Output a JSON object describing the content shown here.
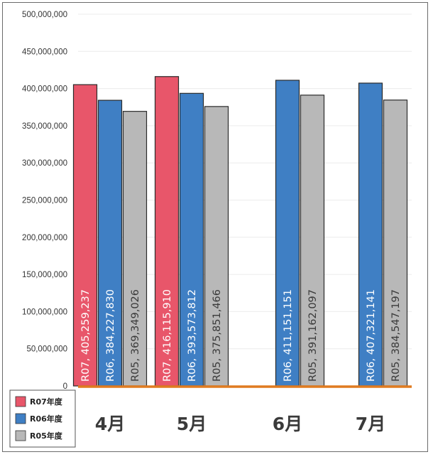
{
  "chart_data": {
    "type": "bar",
    "categories": [
      "4月",
      "5月",
      "6月",
      "7月"
    ],
    "series": [
      {
        "name": "R07年度",
        "color": "#e8566a",
        "values": [
          405259237,
          416115910,
          null,
          null
        ]
      },
      {
        "name": "R06年度",
        "color": "#3f7fc4",
        "values": [
          384227830,
          393573812,
          411151151,
          407321141
        ]
      },
      {
        "name": "R05年度",
        "color": "#b8b8b8",
        "values": [
          369349026,
          375851466,
          391162097,
          384547197
        ]
      }
    ],
    "data_labels": [
      [
        "R07, 405,259,237",
        "R06, 384,227,830",
        "R05, 369,349,026"
      ],
      [
        "R07, 416,115,910",
        "R06, 393,573,812",
        "R05, 375,851,466"
      ],
      [
        null,
        "R06, 411,151,151",
        "R05, 391,162,097"
      ],
      [
        null,
        "R06, 407,321,141",
        "R05, 384,547,197"
      ]
    ],
    "ylim": [
      0,
      500000000
    ],
    "yticks": [
      0,
      50000000,
      100000000,
      150000000,
      200000000,
      250000000,
      300000000,
      350000000,
      400000000,
      450000000,
      500000000
    ],
    "ytick_labels": [
      "0",
      "50,000,000",
      "100,000,000",
      "150,000,000",
      "200,000,000",
      "250,000,000",
      "300,000,000",
      "350,000,000",
      "400,000,000",
      "450,000,000",
      "500,000,000"
    ],
    "title": "",
    "xlabel": "",
    "ylabel": "",
    "grid": true,
    "legend_position": "bottom-left",
    "baseline_color": "#e07b20"
  }
}
